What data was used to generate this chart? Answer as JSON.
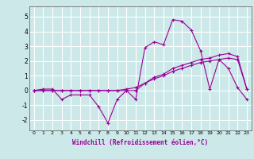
{
  "title": "",
  "xlabel": "Windchill (Refroidissement éolien,°C)",
  "ylabel": "",
  "background_color": "#cce8e8",
  "grid_color": "#ffffff",
  "line_color": "#990099",
  "xlim": [
    -0.5,
    23.5
  ],
  "ylim": [
    -2.7,
    5.7
  ],
  "yticks": [
    -2,
    -1,
    0,
    1,
    2,
    3,
    4,
    5
  ],
  "xticks": [
    0,
    1,
    2,
    3,
    4,
    5,
    6,
    7,
    8,
    9,
    10,
    11,
    12,
    13,
    14,
    15,
    16,
    17,
    18,
    19,
    20,
    21,
    22,
    23
  ],
  "series": [
    [
      0,
      1,
      2,
      3,
      4,
      5,
      6,
      7,
      8,
      9,
      10,
      11,
      12,
      13,
      14,
      15,
      16,
      17,
      18,
      19,
      20,
      21,
      22,
      23
    ],
    [
      0,
      0.1,
      0.1,
      -0.6,
      -0.3,
      -0.3,
      -0.3,
      -1.1,
      -2.2,
      -0.6,
      0.0,
      -0.6,
      2.9,
      3.3,
      3.1,
      4.8,
      4.7,
      4.1,
      2.7,
      0.1,
      2.1,
      1.5,
      0.2,
      -0.6
    ],
    [
      0,
      0,
      0,
      0,
      0,
      0,
      0,
      0,
      0,
      0,
      0,
      0,
      0.5,
      0.9,
      1.1,
      1.5,
      1.7,
      1.9,
      2.1,
      2.2,
      2.4,
      2.5,
      2.3,
      0.1
    ],
    [
      0,
      0,
      0,
      0,
      0,
      0,
      0,
      0,
      0,
      0,
      0.1,
      0.2,
      0.5,
      0.8,
      1.0,
      1.3,
      1.5,
      1.7,
      1.9,
      2.0,
      2.1,
      2.2,
      2.1,
      0.1
    ]
  ]
}
